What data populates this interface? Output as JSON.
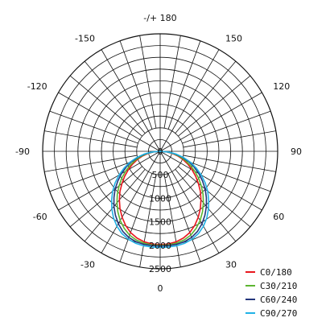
{
  "chart_data": {
    "type": "polar",
    "title": "",
    "angle_labels": [
      {
        "angle": 180,
        "text": "-/+ 180"
      },
      {
        "angle": -150,
        "text": "-150"
      },
      {
        "angle": 150,
        "text": "150"
      },
      {
        "angle": -120,
        "text": "-120"
      },
      {
        "angle": 120,
        "text": "120"
      },
      {
        "angle": -90,
        "text": "-90"
      },
      {
        "angle": 90,
        "text": "90"
      },
      {
        "angle": -60,
        "text": "-60"
      },
      {
        "angle": 60,
        "text": "60"
      },
      {
        "angle": -30,
        "text": "-30"
      },
      {
        "angle": 30,
        "text": "30"
      },
      {
        "angle": 0,
        "text": "0"
      }
    ],
    "radial_ticks": [
      "0",
      "500",
      "1000",
      "1500",
      "2000",
      "2500"
    ],
    "r_range": [
      0,
      2500
    ],
    "grid": true,
    "angular_grid_step_deg": 10,
    "radial_grid_step": 250,
    "legend_position": "bottom-right",
    "series": [
      {
        "name": "C0/180",
        "color": "#e8171d",
        "angles": [
          -90,
          -85,
          -80,
          -75,
          -70,
          -65,
          -60,
          -55,
          -50,
          -45,
          -40,
          -35,
          -30,
          -25,
          -20,
          -15,
          -10,
          -5,
          0,
          5,
          10,
          15,
          20,
          25,
          30,
          35,
          40,
          45,
          50,
          55,
          60,
          65,
          70,
          75,
          80,
          85,
          90
        ],
        "values": [
          0,
          130,
          260,
          390,
          520,
          650,
          780,
          920,
          1060,
          1210,
          1350,
          1490,
          1620,
          1740,
          1840,
          1910,
          1955,
          1980,
          1985,
          1980,
          1955,
          1910,
          1840,
          1740,
          1620,
          1490,
          1350,
          1210,
          1060,
          920,
          780,
          650,
          520,
          390,
          260,
          130,
          0
        ]
      },
      {
        "name": "C30/210",
        "color": "#5cb531",
        "angles": [
          -90,
          -85,
          -80,
          -75,
          -70,
          -65,
          -60,
          -55,
          -50,
          -45,
          -40,
          -35,
          -30,
          -25,
          -20,
          -15,
          -10,
          -5,
          0,
          5,
          10,
          15,
          20,
          25,
          30,
          35,
          40,
          45,
          50,
          55,
          60,
          65,
          70,
          75,
          80,
          85,
          90
        ],
        "values": [
          0,
          150,
          290,
          430,
          570,
          710,
          850,
          1000,
          1140,
          1290,
          1430,
          1570,
          1700,
          1810,
          1900,
          1955,
          1985,
          2000,
          2000,
          2000,
          1985,
          1955,
          1900,
          1810,
          1700,
          1570,
          1430,
          1290,
          1140,
          1000,
          850,
          710,
          570,
          430,
          290,
          150,
          0
        ]
      },
      {
        "name": "C60/240",
        "color": "#24367c",
        "angles": [
          -90,
          -85,
          -80,
          -75,
          -70,
          -65,
          -60,
          -55,
          -50,
          -45,
          -40,
          -35,
          -30,
          -25,
          -20,
          -15,
          -10,
          -5,
          0,
          5,
          10,
          15,
          20,
          25,
          30,
          35,
          40,
          45,
          50,
          55,
          60,
          65,
          70,
          75,
          80,
          85,
          90
        ],
        "values": [
          0,
          170,
          330,
          490,
          650,
          800,
          950,
          1100,
          1250,
          1390,
          1530,
          1660,
          1780,
          1880,
          1950,
          1990,
          2010,
          2015,
          2015,
          2015,
          2010,
          1990,
          1950,
          1880,
          1780,
          1660,
          1530,
          1390,
          1250,
          1100,
          950,
          800,
          650,
          490,
          330,
          170,
          0
        ]
      },
      {
        "name": "C90/270",
        "color": "#21b2e6",
        "angles": [
          -90,
          -85,
          -80,
          -75,
          -70,
          -65,
          -60,
          -55,
          -50,
          -45,
          -40,
          -35,
          -30,
          -25,
          -20,
          -15,
          -10,
          -5,
          0,
          5,
          10,
          15,
          20,
          25,
          30,
          35,
          40,
          45,
          50,
          55,
          60,
          65,
          70,
          75,
          80,
          85,
          90
        ],
        "values": [
          0,
          180,
          350,
          520,
          690,
          850,
          1010,
          1170,
          1320,
          1460,
          1600,
          1730,
          1840,
          1930,
          1990,
          2025,
          2040,
          2045,
          2045,
          2045,
          2040,
          2025,
          1990,
          1930,
          1840,
          1730,
          1600,
          1460,
          1320,
          1170,
          1010,
          850,
          690,
          520,
          350,
          180,
          0
        ]
      }
    ]
  }
}
